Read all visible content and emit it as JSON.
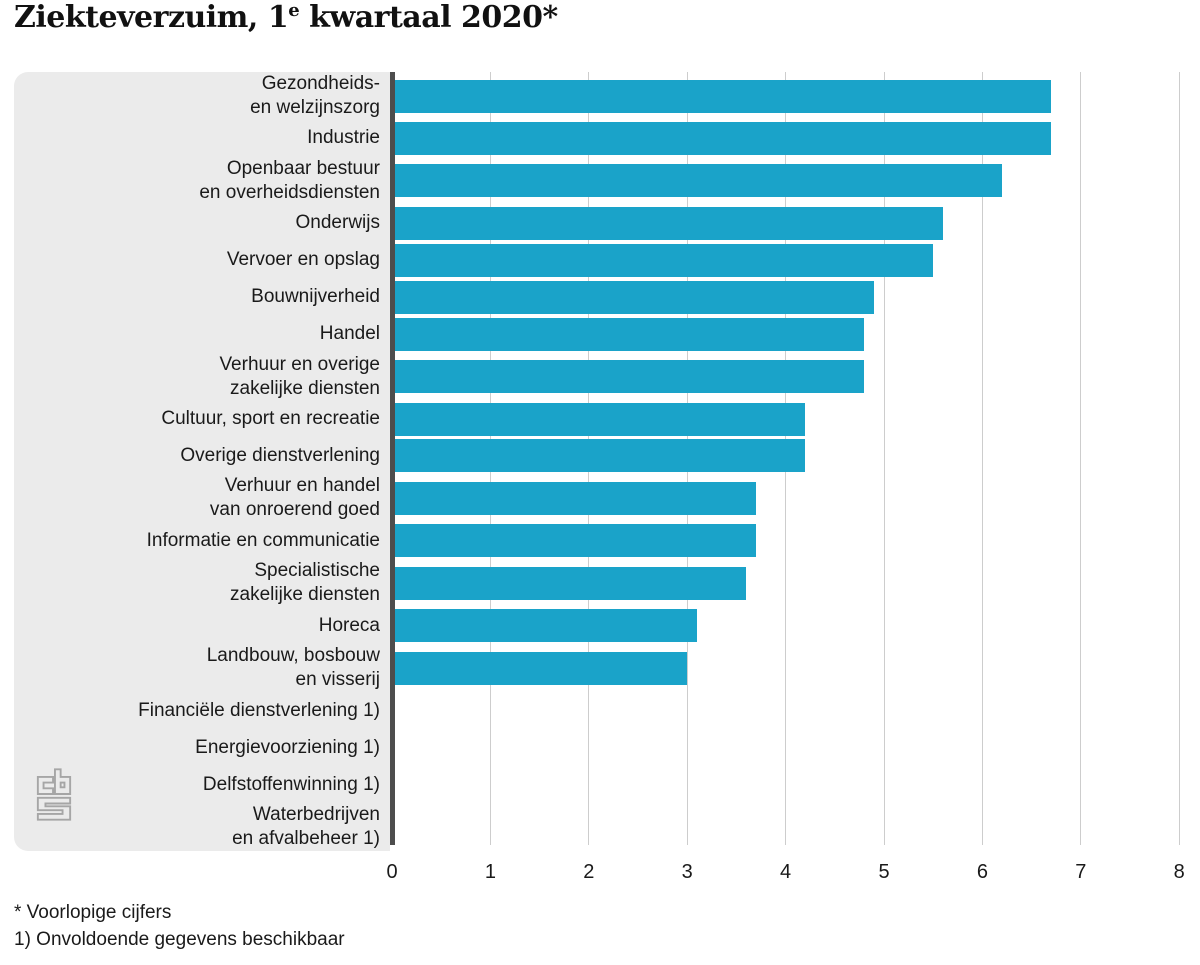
{
  "title": {
    "text": "Ziekteverzuim, 1e kwartaal 2020*",
    "part1": "Ziekteverzuim, 1",
    "sup": "e",
    "part2": " kwartaal 2020*"
  },
  "footnotes": {
    "line1": "* Voorlopige cijfers",
    "line2": "1) Onvoldoende gegevens beschikbaar"
  },
  "colors": {
    "bar": "#1aa3c9",
    "label_panel": "#ebebeb",
    "gridline": "#cdcdcd",
    "axis_line": "#4d4d4d",
    "text": "#1a1a1a",
    "logo": "#a6a6a6"
  },
  "logo": {
    "name": "cbs-logo"
  },
  "chart_data": {
    "type": "bar",
    "orientation": "horizontal",
    "title": "Ziekteverzuim, 1e kwartaal 2020*",
    "xlabel": "",
    "ylabel": "",
    "xlim": [
      0,
      8
    ],
    "x_ticks": [
      0,
      1,
      2,
      3,
      4,
      5,
      6,
      7,
      8
    ],
    "grid": true,
    "legend": false,
    "bar_color": "#1aa3c9",
    "categories": [
      "Gezondheids- en welzijnszorg",
      "Industrie",
      "Openbaar bestuur en overheidsdiensten",
      "Onderwijs",
      "Vervoer en opslag",
      "Bouwnijverheid",
      "Handel",
      "Verhuur en overige zakelijke diensten",
      "Cultuur, sport en recreatie",
      "Overige dienstverlening",
      "Verhuur en handel van onroerend goed",
      "Informatie en communicatie",
      "Specialistische zakelijke diensten",
      "Horeca",
      "Landbouw, bosbouw en visserij",
      "Financiële dienstverlening 1)",
      "Energievoorziening 1)",
      "Delfstoffenwinning 1)",
      "Waterbedrijven en afvalbeheer 1)"
    ],
    "values": [
      6.7,
      6.7,
      6.2,
      5.6,
      5.5,
      4.9,
      4.8,
      4.8,
      4.2,
      4.2,
      3.7,
      3.7,
      3.6,
      3.1,
      3.0,
      null,
      null,
      null,
      null
    ],
    "bars": [
      {
        "label": "Gezondheids- en welzijnszorg",
        "label_lines": [
          "Gezondheids-",
          "en welzijnszorg"
        ],
        "value": 6.7
      },
      {
        "label": "Industrie",
        "label_lines": [
          "Industrie"
        ],
        "value": 6.7
      },
      {
        "label": "Openbaar bestuur en overheidsdiensten",
        "label_lines": [
          "Openbaar bestuur",
          "en overheidsdiensten"
        ],
        "value": 6.2
      },
      {
        "label": "Onderwijs",
        "label_lines": [
          "Onderwijs"
        ],
        "value": 5.6
      },
      {
        "label": "Vervoer en opslag",
        "label_lines": [
          "Vervoer en opslag"
        ],
        "value": 5.5
      },
      {
        "label": "Bouwnijverheid",
        "label_lines": [
          "Bouwnijverheid"
        ],
        "value": 4.9
      },
      {
        "label": "Handel",
        "label_lines": [
          "Handel"
        ],
        "value": 4.8
      },
      {
        "label": "Verhuur en overige zakelijke diensten",
        "label_lines": [
          "Verhuur en overige",
          "zakelijke diensten"
        ],
        "value": 4.8
      },
      {
        "label": "Cultuur, sport en recreatie",
        "label_lines": [
          "Cultuur, sport en recreatie"
        ],
        "value": 4.2
      },
      {
        "label": "Overige dienstverlening",
        "label_lines": [
          "Overige dienstverlening"
        ],
        "value": 4.2
      },
      {
        "label": "Verhuur en handel van onroerend goed",
        "label_lines": [
          "Verhuur en handel",
          "van onroerend goed"
        ],
        "value": 3.7
      },
      {
        "label": "Informatie en communicatie",
        "label_lines": [
          "Informatie en communicatie"
        ],
        "value": 3.7
      },
      {
        "label": "Specialistische zakelijke diensten",
        "label_lines": [
          "Specialistische",
          "zakelijke diensten"
        ],
        "value": 3.6
      },
      {
        "label": "Horeca",
        "label_lines": [
          "Horeca"
        ],
        "value": 3.1
      },
      {
        "label": "Landbouw, bosbouw en visserij",
        "label_lines": [
          "Landbouw, bosbouw",
          "en visserij"
        ],
        "value": 3.0
      },
      {
        "label": "Financiële dienstverlening 1)",
        "label_lines": [
          "Financiële dienstverlening 1)"
        ],
        "value": null
      },
      {
        "label": "Energievoorziening 1)",
        "label_lines": [
          "Energievoorziening 1)"
        ],
        "value": null
      },
      {
        "label": "Delfstoffenwinning 1)",
        "label_lines": [
          "Delfstoffenwinning 1)"
        ],
        "value": null
      },
      {
        "label": "Waterbedrijven en afvalbeheer 1)",
        "label_lines": [
          "Waterbedrijven",
          "en afvalbeheer 1)"
        ],
        "value": null
      }
    ]
  }
}
